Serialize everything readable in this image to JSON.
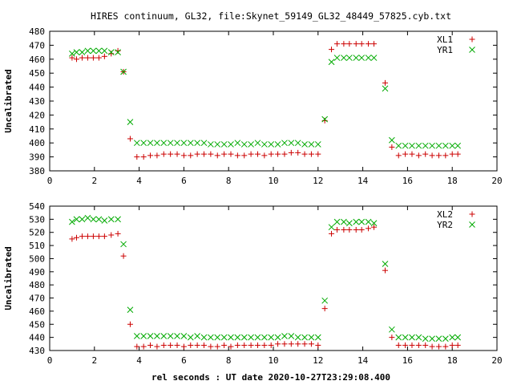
{
  "title": "HIRES continuum, GL32, file:Skynet_59149_GL32_48449_57825.cyb.txt",
  "xlabel": "rel seconds : UT date 2020-10-27T23:29:08.400",
  "colors": {
    "plus": "#cc0000",
    "cross": "#00aa00",
    "frame": "#000000"
  },
  "chart_data": [
    {
      "type": "scatter",
      "ylabel": "Uncalibrated",
      "xlim": [
        0,
        20
      ],
      "ylim": [
        380,
        480
      ],
      "xticks": [
        "0",
        "2",
        "4",
        "6",
        "8",
        "10",
        "12",
        "14",
        "16",
        "18",
        "20"
      ],
      "yticks": [
        "380",
        "390",
        "400",
        "410",
        "420",
        "430",
        "440",
        "450",
        "460",
        "470",
        "480"
      ],
      "legend_position": "top-right",
      "series": [
        {
          "name": "XL1",
          "marker": "plus",
          "x": [
            1.0,
            1.2,
            1.45,
            1.7,
            1.95,
            2.2,
            2.45,
            2.75,
            3.05,
            3.3,
            3.6,
            3.9,
            4.2,
            4.5,
            4.8,
            5.1,
            5.4,
            5.7,
            6.0,
            6.3,
            6.6,
            6.9,
            7.2,
            7.5,
            7.8,
            8.1,
            8.4,
            8.7,
            9.0,
            9.3,
            9.6,
            9.9,
            10.2,
            10.5,
            10.8,
            11.1,
            11.4,
            11.7,
            12.0,
            12.3,
            12.6,
            12.85,
            13.15,
            13.4,
            13.7,
            13.95,
            14.25,
            14.5,
            15.0,
            15.3,
            15.6,
            15.9,
            16.2,
            16.5,
            16.8,
            17.1,
            17.4,
            17.7,
            18.0,
            18.25
          ],
          "y": [
            461,
            460,
            461,
            461,
            461,
            461,
            462,
            464,
            466,
            451,
            403,
            390,
            390,
            391,
            391,
            392,
            392,
            392,
            391,
            391,
            392,
            392,
            392,
            391,
            392,
            392,
            391,
            391,
            392,
            392,
            391,
            392,
            392,
            392,
            393,
            393,
            392,
            392,
            392,
            416,
            467,
            471,
            471,
            471,
            471,
            471,
            471,
            471,
            443,
            397,
            391,
            392,
            392,
            391,
            392,
            391,
            391,
            391,
            392,
            392
          ]
        },
        {
          "name": "YR1",
          "marker": "cross",
          "x": [
            1.0,
            1.2,
            1.45,
            1.7,
            1.95,
            2.2,
            2.45,
            2.75,
            3.05,
            3.3,
            3.6,
            3.9,
            4.2,
            4.5,
            4.8,
            5.1,
            5.4,
            5.7,
            6.0,
            6.3,
            6.6,
            6.9,
            7.2,
            7.5,
            7.8,
            8.1,
            8.4,
            8.7,
            9.0,
            9.3,
            9.6,
            9.9,
            10.2,
            10.5,
            10.8,
            11.1,
            11.4,
            11.7,
            12.0,
            12.3,
            12.6,
            12.85,
            13.15,
            13.4,
            13.7,
            13.95,
            14.25,
            14.5,
            15.0,
            15.3,
            15.6,
            15.9,
            16.2,
            16.5,
            16.8,
            17.1,
            17.4,
            17.7,
            18.0,
            18.25
          ],
          "y": [
            464,
            465,
            465,
            466,
            466,
            466,
            466,
            465,
            465,
            451,
            415,
            400,
            400,
            400,
            400,
            400,
            400,
            400,
            400,
            400,
            400,
            400,
            399,
            399,
            399,
            399,
            400,
            399,
            399,
            400,
            399,
            399,
            399,
            400,
            400,
            400,
            399,
            399,
            399,
            417,
            458,
            461,
            461,
            461,
            461,
            461,
            461,
            461,
            439,
            402,
            398,
            398,
            398,
            398,
            398,
            398,
            398,
            398,
            398,
            398
          ]
        }
      ]
    },
    {
      "type": "scatter",
      "ylabel": "Uncalibrated",
      "xlim": [
        0,
        20
      ],
      "ylim": [
        430,
        540
      ],
      "xticks": [
        "0",
        "2",
        "4",
        "6",
        "8",
        "10",
        "12",
        "14",
        "16",
        "18",
        "20"
      ],
      "yticks": [
        "430",
        "440",
        "450",
        "460",
        "470",
        "480",
        "490",
        "500",
        "510",
        "520",
        "530",
        "540"
      ],
      "legend_position": "top-right",
      "series": [
        {
          "name": "XL2",
          "marker": "plus",
          "x": [
            1.0,
            1.2,
            1.45,
            1.7,
            1.95,
            2.2,
            2.45,
            2.75,
            3.05,
            3.3,
            3.6,
            3.9,
            4.2,
            4.5,
            4.8,
            5.1,
            5.4,
            5.7,
            6.0,
            6.3,
            6.6,
            6.9,
            7.2,
            7.5,
            7.8,
            8.1,
            8.4,
            8.7,
            9.0,
            9.3,
            9.6,
            9.9,
            10.2,
            10.5,
            10.8,
            11.1,
            11.4,
            11.7,
            12.0,
            12.3,
            12.6,
            12.85,
            13.15,
            13.4,
            13.7,
            13.95,
            14.25,
            14.5,
            15.0,
            15.3,
            15.6,
            15.9,
            16.2,
            16.5,
            16.8,
            17.1,
            17.4,
            17.7,
            18.0,
            18.25
          ],
          "y": [
            515,
            516,
            517,
            517,
            517,
            517,
            517,
            518,
            519,
            502,
            450,
            433,
            433,
            434,
            433,
            434,
            434,
            434,
            433,
            434,
            434,
            434,
            433,
            433,
            434,
            433,
            434,
            434,
            434,
            434,
            434,
            434,
            435,
            435,
            435,
            435,
            435,
            435,
            434,
            462,
            519,
            522,
            522,
            522,
            522,
            522,
            523,
            524,
            491,
            440,
            434,
            434,
            434,
            434,
            434,
            433,
            433,
            433,
            434,
            434
          ]
        },
        {
          "name": "YR2",
          "marker": "cross",
          "x": [
            1.0,
            1.2,
            1.45,
            1.7,
            1.95,
            2.2,
            2.45,
            2.75,
            3.05,
            3.3,
            3.6,
            3.9,
            4.2,
            4.5,
            4.8,
            5.1,
            5.4,
            5.7,
            6.0,
            6.3,
            6.6,
            6.9,
            7.2,
            7.5,
            7.8,
            8.1,
            8.4,
            8.7,
            9.0,
            9.3,
            9.6,
            9.9,
            10.2,
            10.5,
            10.8,
            11.1,
            11.4,
            11.7,
            12.0,
            12.3,
            12.6,
            12.85,
            13.15,
            13.4,
            13.7,
            13.95,
            14.25,
            14.5,
            15.0,
            15.3,
            15.6,
            15.9,
            16.2,
            16.5,
            16.8,
            17.1,
            17.4,
            17.7,
            18.0,
            18.25
          ],
          "y": [
            528,
            530,
            530,
            531,
            530,
            530,
            529,
            530,
            530,
            511,
            461,
            441,
            441,
            441,
            441,
            441,
            441,
            441,
            441,
            440,
            441,
            440,
            440,
            440,
            440,
            440,
            440,
            440,
            440,
            440,
            440,
            440,
            440,
            441,
            441,
            440,
            440,
            440,
            440,
            468,
            524,
            528,
            528,
            527,
            528,
            528,
            528,
            527,
            496,
            446,
            440,
            440,
            440,
            440,
            439,
            439,
            439,
            439,
            440,
            440
          ]
        }
      ]
    }
  ]
}
